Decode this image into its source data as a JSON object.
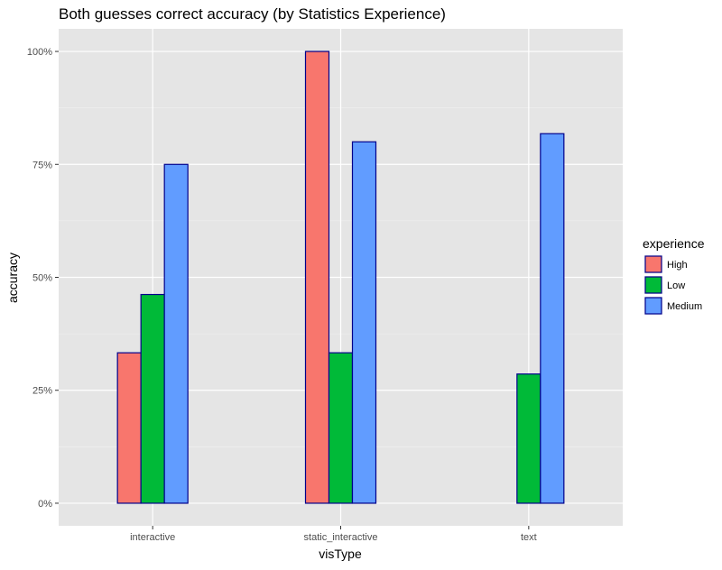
{
  "chart_data": {
    "type": "bar",
    "title": "Both guesses correct accuracy (by Statistics Experience)",
    "xlabel": "visType",
    "ylabel": "accuracy",
    "categories": [
      "interactive",
      "static_interactive",
      "text"
    ],
    "ylim": [
      -0.05,
      1.05
    ],
    "yticks": [
      {
        "value": 0,
        "label": "0%"
      },
      {
        "value": 0.25,
        "label": "25%"
      },
      {
        "value": 0.5,
        "label": "50%"
      },
      {
        "value": 0.75,
        "label": "75%"
      },
      {
        "value": 1.0,
        "label": "100%"
      }
    ],
    "grid": true,
    "legend": {
      "title": "experience",
      "position": "right"
    },
    "series": [
      {
        "name": "High",
        "color": "#F8766D",
        "values": [
          0.333,
          1.0,
          0.0
        ]
      },
      {
        "name": "Low",
        "color": "#00BA38",
        "values": [
          0.462,
          0.333,
          0.286
        ]
      },
      {
        "name": "Medium",
        "color": "#619CFF",
        "values": [
          0.75,
          0.8,
          0.818
        ]
      }
    ],
    "bar_outline_color": "#00008B",
    "panel_background": "#E5E5E5"
  }
}
